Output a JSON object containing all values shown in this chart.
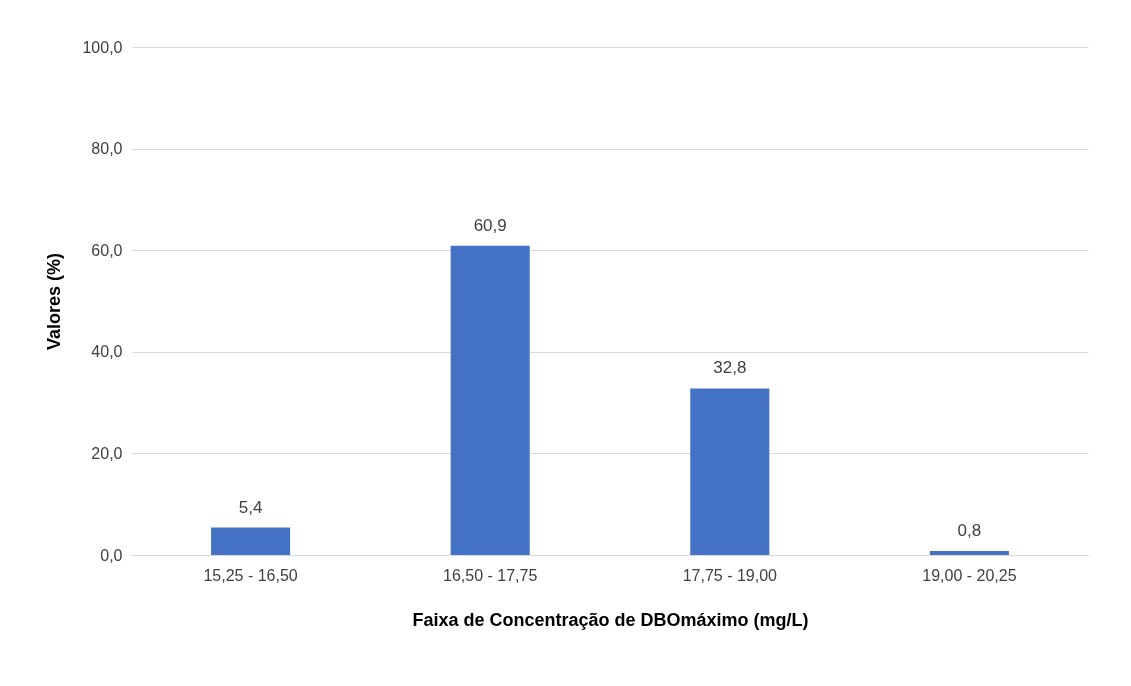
{
  "chart_data": {
    "type": "bar",
    "xlabel": "Faixa de Concentração de DBOmáximo (mg/L)",
    "ylabel": "Valores (%)",
    "categories": [
      "15,25 - 16,50",
      "16,50 - 17,75",
      "17,75 - 19,00",
      "19,00 - 20,25"
    ],
    "values": [
      5.4,
      60.9,
      32.8,
      0.8
    ],
    "value_labels": [
      "5,4",
      "60,9",
      "32,8",
      "0,8"
    ],
    "color": "#4472c4",
    "ylim": [
      0,
      100
    ],
    "yticks": [
      {
        "value": 0,
        "label": "0,0"
      },
      {
        "value": 20,
        "label": "20,0"
      },
      {
        "value": 40,
        "label": "40,0"
      },
      {
        "value": 60,
        "label": "60,0"
      },
      {
        "value": 80,
        "label": "80,0"
      },
      {
        "value": 100,
        "label": "100,0"
      }
    ],
    "grid": "y"
  }
}
